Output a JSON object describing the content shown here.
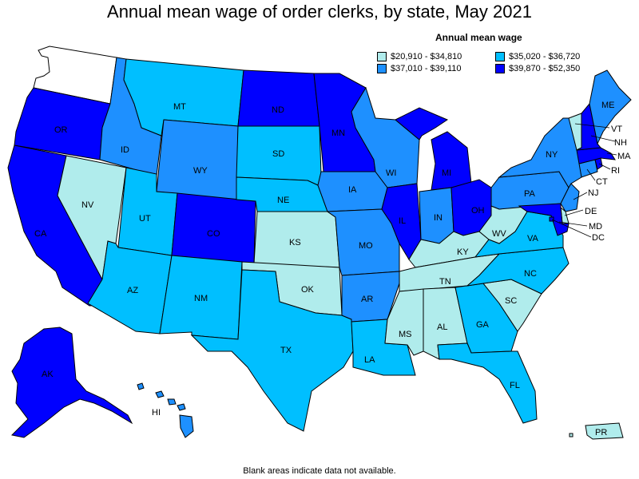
{
  "title": "Annual mean wage of order clerks, by state, May 2021",
  "legend": {
    "title": "Annual mean wage",
    "items": [
      {
        "label": "$20,910 - $34,810",
        "color": "#b0ecec"
      },
      {
        "label": "$35,020 - $36,720",
        "color": "#00bfff"
      },
      {
        "label": "$37,010 - $39,110",
        "color": "#1e90ff"
      },
      {
        "label": "$39,870 - $52,350",
        "color": "#0000ff"
      }
    ]
  },
  "footnote": "Blank areas indicate data not available.",
  "states": {
    "WA": {
      "label": "",
      "bin": -1
    },
    "OR": {
      "label": "OR",
      "bin": 3
    },
    "CA": {
      "label": "CA",
      "bin": 3
    },
    "NV": {
      "label": "NV",
      "bin": 0
    },
    "ID": {
      "label": "ID",
      "bin": 2
    },
    "MT": {
      "label": "MT",
      "bin": 1
    },
    "WY": {
      "label": "WY",
      "bin": 2
    },
    "UT": {
      "label": "UT",
      "bin": 1
    },
    "AZ": {
      "label": "AZ",
      "bin": 1
    },
    "CO": {
      "label": "CO",
      "bin": 3
    },
    "NM": {
      "label": "NM",
      "bin": 1
    },
    "ND": {
      "label": "ND",
      "bin": 3
    },
    "SD": {
      "label": "SD",
      "bin": 1
    },
    "NE": {
      "label": "NE",
      "bin": 1
    },
    "KS": {
      "label": "KS",
      "bin": 0
    },
    "OK": {
      "label": "OK",
      "bin": 0
    },
    "TX": {
      "label": "TX",
      "bin": 1
    },
    "MN": {
      "label": "MN",
      "bin": 3
    },
    "IA": {
      "label": "IA",
      "bin": 2
    },
    "MO": {
      "label": "MO",
      "bin": 2
    },
    "AR": {
      "label": "AR",
      "bin": 2
    },
    "LA": {
      "label": "LA",
      "bin": 1
    },
    "WI": {
      "label": "WI",
      "bin": 2
    },
    "IL": {
      "label": "IL",
      "bin": 3
    },
    "MI": {
      "label": "MI",
      "bin": 3
    },
    "IN": {
      "label": "IN",
      "bin": 2
    },
    "OH": {
      "label": "OH",
      "bin": 3
    },
    "KY": {
      "label": "KY",
      "bin": 0
    },
    "TN": {
      "label": "TN",
      "bin": 0
    },
    "MS": {
      "label": "MS",
      "bin": 0
    },
    "AL": {
      "label": "AL",
      "bin": 0
    },
    "GA": {
      "label": "GA",
      "bin": 1
    },
    "FL": {
      "label": "FL",
      "bin": 1
    },
    "SC": {
      "label": "SC",
      "bin": 0
    },
    "NC": {
      "label": "NC",
      "bin": 1
    },
    "VA": {
      "label": "VA",
      "bin": 1
    },
    "WV": {
      "label": "WV",
      "bin": 0
    },
    "PA": {
      "label": "PA",
      "bin": 2
    },
    "NY": {
      "label": "NY",
      "bin": 2
    },
    "VT": {
      "label": "VT",
      "bin": 0
    },
    "NH": {
      "label": "NH",
      "bin": 3
    },
    "ME": {
      "label": "ME",
      "bin": 2
    },
    "MA": {
      "label": "MA",
      "bin": 3
    },
    "RI": {
      "label": "RI",
      "bin": 3
    },
    "CT": {
      "label": "CT",
      "bin": 2
    },
    "NJ": {
      "label": "NJ",
      "bin": 2
    },
    "DE": {
      "label": "DE",
      "bin": 0
    },
    "MD": {
      "label": "MD",
      "bin": 3
    },
    "DC": {
      "label": "DC",
      "bin": 3
    },
    "AK": {
      "label": "AK",
      "bin": 3
    },
    "HI": {
      "label": "HI",
      "bin": 2
    },
    "PR": {
      "label": "PR",
      "bin": 0
    }
  }
}
